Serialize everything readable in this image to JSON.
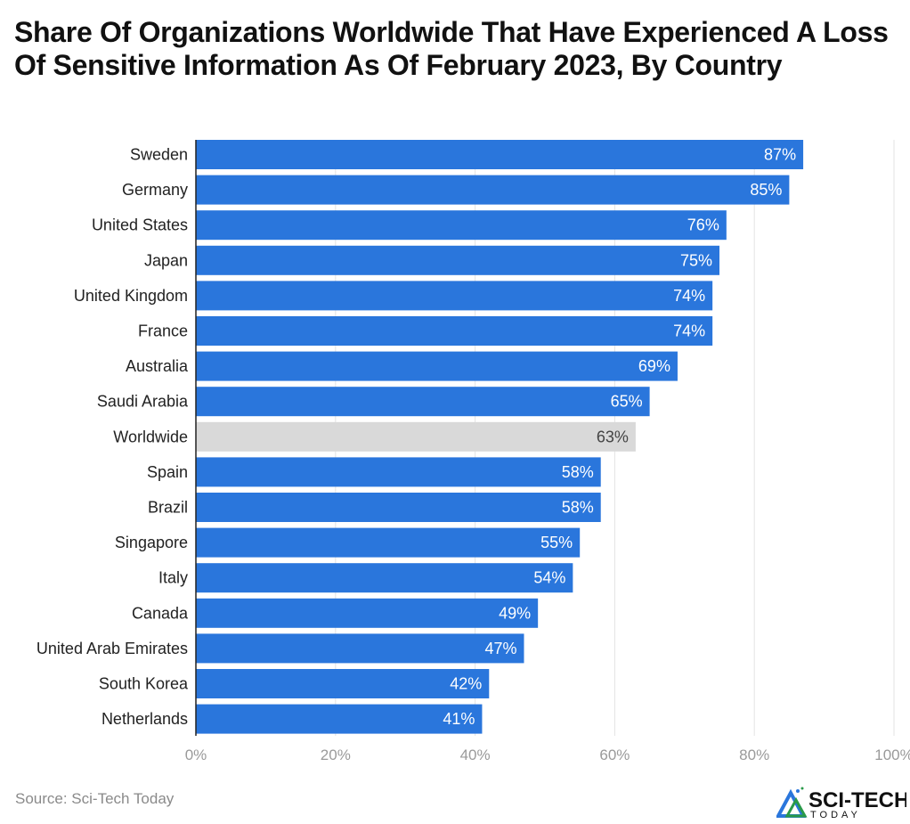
{
  "chart_data": {
    "type": "bar",
    "orientation": "horizontal",
    "title": "Share Of Organizations Worldwide That Have Experienced A Loss Of Sensitive Information As Of February 2023, By Country",
    "categories": [
      "Sweden",
      "Germany",
      "United States",
      "Japan",
      "United Kingdom",
      "France",
      "Australia",
      "Saudi Arabia",
      "Worldwide",
      "Spain",
      "Brazil",
      "Singapore",
      "Italy",
      "Canada",
      "United Arab Emirates",
      "South Korea",
      "Netherlands"
    ],
    "values": [
      87,
      85,
      76,
      75,
      74,
      74,
      69,
      65,
      63,
      58,
      58,
      55,
      54,
      49,
      47,
      42,
      41
    ],
    "data_labels": [
      "87%",
      "85%",
      "76%",
      "75%",
      "74%",
      "74%",
      "69%",
      "65%",
      "63%",
      "58%",
      "58%",
      "55%",
      "54%",
      "49%",
      "47%",
      "42%",
      "41%"
    ],
    "highlight_category": "Worldwide",
    "xlim": [
      0,
      100
    ],
    "xticks": [
      0,
      20,
      40,
      60,
      80,
      100
    ],
    "xtick_labels": [
      "0%",
      "20%",
      "40%",
      "60%",
      "80%",
      "100%"
    ],
    "xlabel": "",
    "ylabel": "",
    "grid": "vertical",
    "colors": {
      "bar": "#2a76dc",
      "highlight": "#d9d9d9",
      "label_on_bar": "#ffffff",
      "label_on_highlight": "#444444",
      "grid": "#e3e3e3",
      "tick_label": "#9a9a9a"
    }
  },
  "source": "Source: Sci-Tech Today",
  "logo": {
    "text_main": "SCI-TECH",
    "text_sub": "TODAY"
  }
}
